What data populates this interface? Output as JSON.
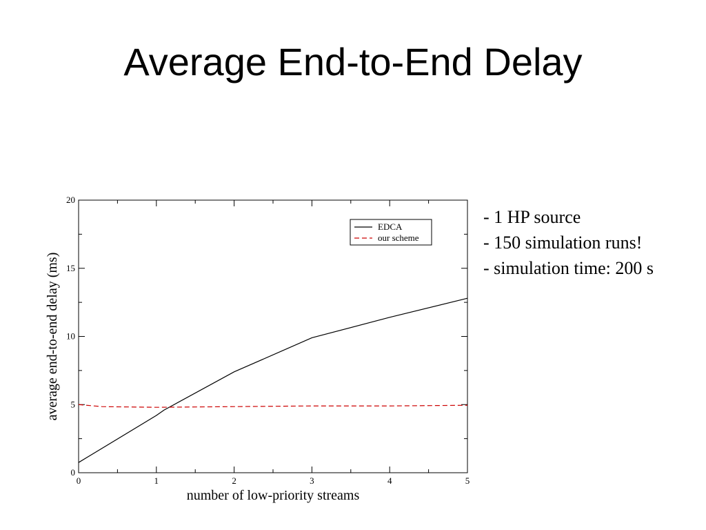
{
  "slide": {
    "title": "Average End-to-End Delay",
    "notes": [
      "- 1 HP source",
      "- 150 simulation runs!",
      "- simulation time: 200 s"
    ]
  },
  "chart_data": {
    "type": "line",
    "xlabel": "number of low-priority streams",
    "ylabel": "average end-to-end delay (ms)",
    "xlim": [
      0,
      5
    ],
    "ylim": [
      0,
      20
    ],
    "x_ticks": [
      0,
      1,
      2,
      3,
      4,
      5
    ],
    "y_ticks": [
      0,
      5,
      10,
      15,
      20
    ],
    "grid": false,
    "legend_position": "top-right",
    "series": [
      {
        "name": "EDCA",
        "style": "solid",
        "color": "#000000",
        "x": [
          0,
          1,
          1.1,
          2,
          3,
          4,
          5
        ],
        "y": [
          0.75,
          4.2,
          4.6,
          7.4,
          9.9,
          11.4,
          12.8
        ]
      },
      {
        "name": "our scheme",
        "style": "dashed",
        "color": "#cc0000",
        "x": [
          0,
          0.3,
          1,
          2,
          3,
          4,
          5
        ],
        "y": [
          5.0,
          4.85,
          4.8,
          4.85,
          4.9,
          4.9,
          4.95
        ]
      }
    ]
  }
}
